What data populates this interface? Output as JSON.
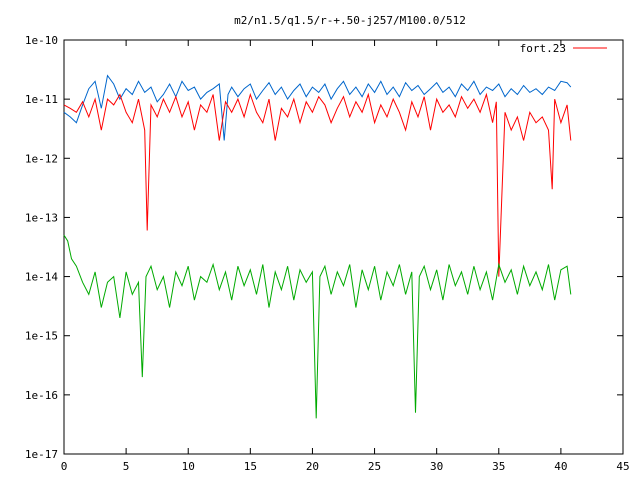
{
  "chart_data": {
    "type": "line",
    "title": "m2/n1.5/q1.5/r-+.50-j257/M100.0/512",
    "xlabel": "",
    "ylabel": "",
    "xlim": [
      0,
      45
    ],
    "ylim": [
      1e-17,
      1e-10
    ],
    "yscale": "log",
    "grid": false,
    "legend_position": "top-right",
    "x_ticks": [
      0,
      5,
      10,
      15,
      20,
      25,
      30,
      35,
      40,
      45
    ],
    "x_tick_labels": [
      "0",
      "5",
      "10",
      "15",
      "20",
      "25",
      "30",
      "35",
      "40",
      "45"
    ],
    "y_ticks": [
      1e-17,
      1e-16,
      1e-15,
      1e-14,
      1e-13,
      1e-12,
      1e-11,
      1e-10
    ],
    "y_tick_labels": [
      "1e-17",
      "1e-16",
      "1e-15",
      "1e-14",
      "1e-13",
      "1e-12",
      "1e-11",
      "1e-10"
    ],
    "series": [
      {
        "name": "fort.23",
        "color": "#ff0000",
        "x": [
          0,
          0.5,
          1,
          1.5,
          2,
          2.5,
          3,
          3.5,
          4,
          4.5,
          5,
          5.5,
          6,
          6.5,
          6.7,
          7,
          7.5,
          8,
          8.5,
          9,
          9.5,
          10,
          10.5,
          11,
          11.5,
          12,
          12.5,
          13,
          13.5,
          14,
          14.5,
          15,
          15.5,
          16,
          16.5,
          17,
          17.5,
          18,
          18.5,
          19,
          19.5,
          20,
          20.5,
          21,
          21.5,
          22,
          22.5,
          23,
          23.5,
          24,
          24.5,
          25,
          25.5,
          26,
          26.5,
          27,
          27.5,
          28,
          28.5,
          29,
          29.5,
          30,
          30.5,
          31,
          31.5,
          32,
          32.5,
          33,
          33.5,
          34,
          34.5,
          34.8,
          35,
          35.5,
          36,
          36.5,
          37,
          37.5,
          38,
          38.5,
          39,
          39.3,
          39.5,
          40,
          40.5,
          40.8
        ],
        "y": [
          8e-12,
          7e-12,
          6e-12,
          9e-12,
          5e-12,
          1e-11,
          3e-12,
          1e-11,
          8e-12,
          1.2e-11,
          6e-12,
          4e-12,
          1e-11,
          3e-12,
          6e-14,
          8e-12,
          5e-12,
          1e-11,
          6e-12,
          1.1e-11,
          5e-12,
          9e-12,
          3e-12,
          8e-12,
          6e-12,
          1.2e-11,
          2e-12,
          9e-12,
          6e-12,
          1e-11,
          5e-12,
          1.2e-11,
          6e-12,
          4e-12,
          1e-11,
          2e-12,
          7e-12,
          5e-12,
          1e-11,
          4e-12,
          9e-12,
          6e-12,
          1.1e-11,
          8e-12,
          4e-12,
          7e-12,
          1.1e-11,
          5e-12,
          9e-12,
          6e-12,
          1.2e-11,
          4e-12,
          8e-12,
          5e-12,
          1e-11,
          6e-12,
          3e-12,
          9e-12,
          5e-12,
          1.1e-11,
          3e-12,
          1e-11,
          6e-12,
          8e-12,
          5e-12,
          1.1e-11,
          7e-12,
          1e-11,
          6e-12,
          1.2e-11,
          4e-12,
          9e-12,
          1e-14,
          6e-12,
          3e-12,
          5e-12,
          2e-12,
          6e-12,
          4e-12,
          5e-12,
          3e-12,
          3e-13,
          1e-11,
          4e-12,
          8e-12,
          2e-12
        ]
      },
      {
        "name": "",
        "color": "#0066cc",
        "x": [
          0,
          0.5,
          1,
          1.5,
          2,
          2.5,
          3,
          3.5,
          4,
          4.5,
          5,
          5.5,
          6,
          6.5,
          7,
          7.5,
          8,
          8.5,
          9,
          9.5,
          10,
          10.5,
          11,
          11.5,
          12,
          12.5,
          12.9,
          13.2,
          13.5,
          14,
          14.5,
          15,
          15.5,
          16,
          16.5,
          17,
          17.5,
          18,
          18.5,
          19,
          19.5,
          20,
          20.5,
          21,
          21.5,
          22,
          22.5,
          23,
          23.5,
          24,
          24.5,
          25,
          25.5,
          26,
          26.5,
          27,
          27.5,
          28,
          28.5,
          29,
          29.5,
          30,
          30.5,
          31,
          31.5,
          32,
          32.5,
          33,
          33.5,
          34,
          34.5,
          35,
          35.5,
          36,
          36.5,
          37,
          37.5,
          38,
          38.5,
          39,
          39.5,
          40,
          40.5,
          40.8
        ],
        "y": [
          6e-12,
          5e-12,
          4e-12,
          8e-12,
          1.5e-11,
          2e-11,
          7e-12,
          2.5e-11,
          1.8e-11,
          1e-11,
          1.5e-11,
          1.2e-11,
          2e-11,
          1.3e-11,
          1.6e-11,
          9e-12,
          1.2e-11,
          1.8e-11,
          1.1e-11,
          2e-11,
          1.4e-11,
          1.6e-11,
          1e-11,
          1.3e-11,
          1.5e-11,
          1.8e-11,
          2e-12,
          1.2e-11,
          1.6e-11,
          1.1e-11,
          1.5e-11,
          1.8e-11,
          1e-11,
          1.4e-11,
          1.9e-11,
          1.2e-11,
          1.6e-11,
          1e-11,
          1.4e-11,
          1.8e-11,
          1.1e-11,
          1.6e-11,
          1.3e-11,
          1.8e-11,
          1e-11,
          1.5e-11,
          2e-11,
          1.2e-11,
          1.6e-11,
          1.1e-11,
          1.8e-11,
          1.3e-11,
          2e-11,
          1.2e-11,
          1.6e-11,
          1.1e-11,
          1.9e-11,
          1.4e-11,
          1.7e-11,
          1.2e-11,
          1.5e-11,
          1.9e-11,
          1.3e-11,
          1.6e-11,
          1.1e-11,
          1.8e-11,
          1.4e-11,
          2e-11,
          1.2e-11,
          1.6e-11,
          1.4e-11,
          1.8e-11,
          1.1e-11,
          1.5e-11,
          1.2e-11,
          1.7e-11,
          1.3e-11,
          1.5e-11,
          1.2e-11,
          1.6e-11,
          1.4e-11,
          2e-11,
          1.9e-11,
          1.6e-11
        ]
      },
      {
        "name": "",
        "color": "#00aa00",
        "x": [
          0,
          0.3,
          0.6,
          1,
          1.5,
          2,
          2.5,
          3,
          3.5,
          4,
          4.5,
          5,
          5.5,
          6,
          6.3,
          6.6,
          7,
          7.5,
          8,
          8.5,
          9,
          9.5,
          10,
          10.5,
          11,
          11.5,
          12,
          12.5,
          13,
          13.5,
          14,
          14.5,
          15,
          15.5,
          16,
          16.5,
          17,
          17.5,
          18,
          18.5,
          19,
          19.5,
          20,
          20.3,
          20.6,
          21,
          21.5,
          22,
          22.5,
          23,
          23.5,
          24,
          24.5,
          25,
          25.5,
          26,
          26.5,
          27,
          27.5,
          28,
          28.3,
          28.6,
          29,
          29.5,
          30,
          30.5,
          31,
          31.5,
          32,
          32.5,
          33,
          33.5,
          34,
          34.5,
          35,
          35.5,
          36,
          36.5,
          37,
          37.5,
          38,
          38.5,
          39,
          39.5,
          40,
          40.5,
          40.8
        ],
        "y": [
          5e-14,
          4e-14,
          2e-14,
          1.5e-14,
          8e-15,
          5e-15,
          1.2e-14,
          3e-15,
          8e-15,
          1e-14,
          2e-15,
          1.2e-14,
          5e-15,
          8e-15,
          2e-16,
          1e-14,
          1.5e-14,
          6e-15,
          1e-14,
          3e-15,
          1.2e-14,
          7e-15,
          1.5e-14,
          4e-15,
          1e-14,
          8e-15,
          1.6e-14,
          6e-15,
          1.2e-14,
          4e-15,
          1.5e-14,
          7e-15,
          1.3e-14,
          5e-15,
          1.6e-14,
          3e-15,
          1.2e-14,
          6e-15,
          1.5e-14,
          4e-15,
          1.3e-14,
          8e-15,
          1.2e-14,
          4e-17,
          1e-14,
          1.5e-14,
          5e-15,
          1.2e-14,
          7e-15,
          1.6e-14,
          3e-15,
          1.3e-14,
          6e-15,
          1.5e-14,
          4e-15,
          1.2e-14,
          7e-15,
          1.6e-14,
          5e-15,
          1.2e-14,
          5e-17,
          1e-14,
          1.5e-14,
          6e-15,
          1.3e-14,
          4e-15,
          1.6e-14,
          7e-15,
          1.2e-14,
          5e-15,
          1.5e-14,
          6e-15,
          1.2e-14,
          4e-15,
          1.6e-14,
          8e-15,
          1.3e-14,
          5e-15,
          1.5e-14,
          7e-15,
          1.2e-14,
          6e-15,
          1.6e-14,
          4e-15,
          1.3e-14,
          1.5e-14,
          5e-15
        ]
      }
    ]
  }
}
